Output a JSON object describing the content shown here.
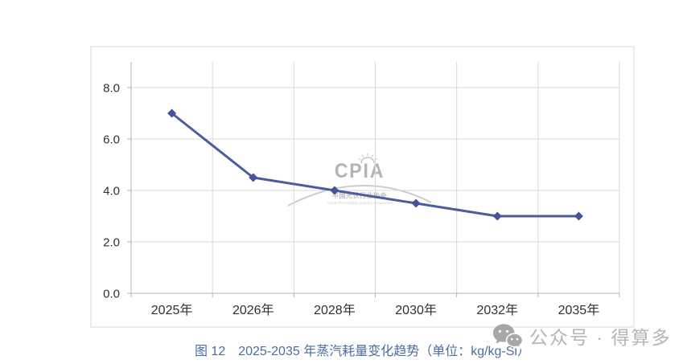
{
  "chart_data": {
    "type": "line",
    "categories": [
      "2025年",
      "2026年",
      "2028年",
      "2030年",
      "2032年",
      "2035年"
    ],
    "series": [
      {
        "name": "蒸汽耗量",
        "values": [
          7.0,
          4.5,
          4.0,
          3.5,
          3.0,
          3.0
        ]
      }
    ],
    "title": "",
    "xlabel": "",
    "ylabel": "",
    "ylim": [
      0,
      9
    ],
    "yticks": [
      0.0,
      2.0,
      4.0,
      6.0,
      8.0
    ],
    "ytick_labels": [
      "0.0",
      "2.0",
      "4.0",
      "6.0",
      "8.0"
    ],
    "grid": true,
    "legend": "none",
    "marker": "diamond"
  },
  "caption": {
    "text": "图 12　2025-2035 年蒸汽耗量变化趋势（单位：kg/kg-Si）"
  },
  "watermark_center": {
    "brand": "CPIA",
    "name_cn": "中国光伏行业协会",
    "name_en": "China Photovoltaic Industry Association"
  },
  "watermark_corner": {
    "text": "公众号 · 得算多"
  },
  "colors": {
    "line": "#4a5c9e",
    "marker": "#43549a",
    "grid": "#d9d9d9",
    "axis": "#b3b3b3",
    "tick_text": "#303030",
    "caption": "#4c6d9e",
    "watermark": "#bdbdbd"
  }
}
